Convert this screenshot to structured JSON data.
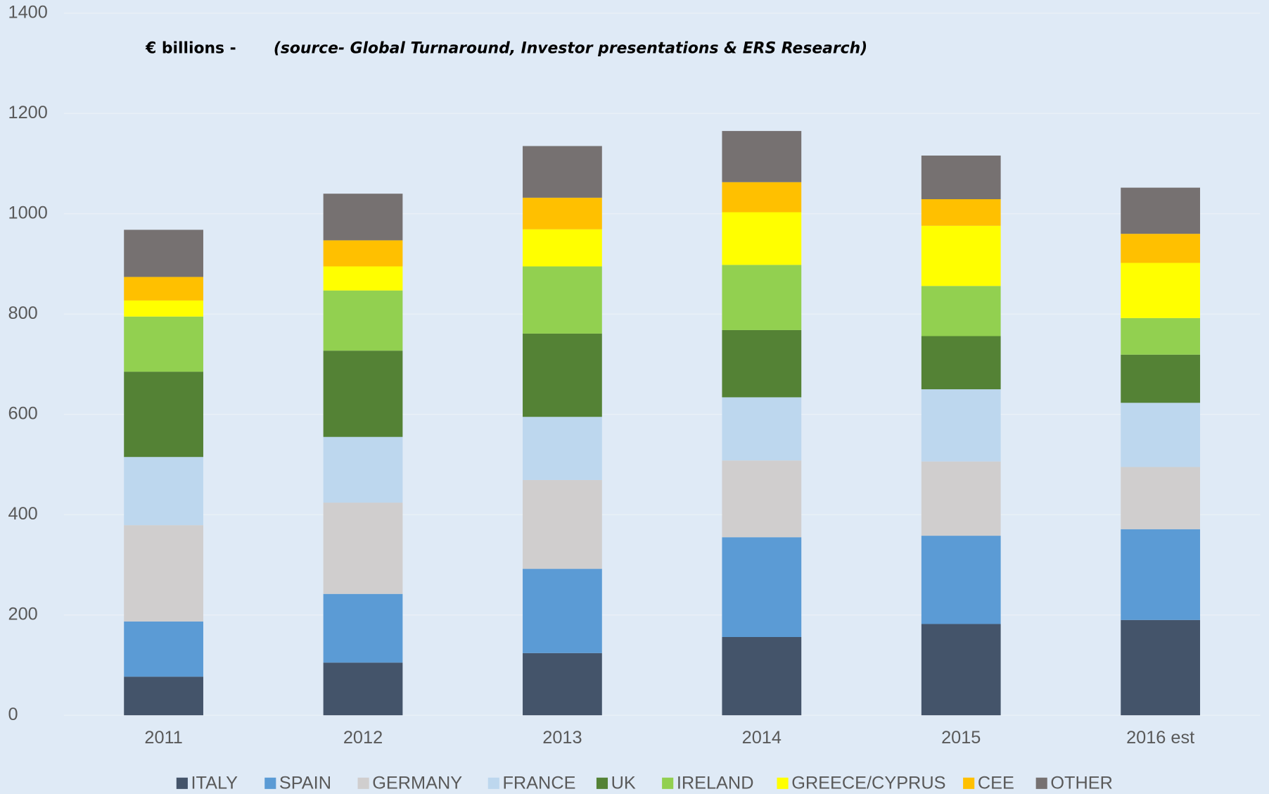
{
  "chart_data": {
    "type": "stacked_bar",
    "annotations": [
      "€ billions -",
      "(source- Global Turnaround, Investor presentations & ERS Research)"
    ],
    "categories": [
      "2011",
      "2012",
      "2013",
      "2014",
      "2015",
      "2016 est"
    ],
    "series": [
      {
        "name": "ITALY",
        "color": "#44546a",
        "values": [
          77,
          105,
          124,
          156,
          182,
          190
        ]
      },
      {
        "name": "SPAIN",
        "color": "#5b9bd5",
        "values": [
          110,
          137,
          168,
          199,
          176,
          181
        ]
      },
      {
        "name": "GERMANY",
        "color": "#d0cece",
        "values": [
          192,
          182,
          177,
          153,
          148,
          124
        ]
      },
      {
        "name": "FRANCE",
        "color": "#bdd7ee",
        "values": [
          136,
          131,
          126,
          126,
          144,
          128
        ]
      },
      {
        "name": "UK",
        "color": "#548235",
        "values": [
          170,
          172,
          166,
          134,
          106,
          96
        ]
      },
      {
        "name": "IRELAND",
        "color": "#92d050",
        "values": [
          110,
          120,
          134,
          130,
          100,
          73
        ]
      },
      {
        "name": "GREECE/CYPRUS",
        "color": "#ffff00",
        "values": [
          32,
          48,
          74,
          105,
          120,
          110
        ]
      },
      {
        "name": "CEE",
        "color": "#ffc000",
        "values": [
          47,
          52,
          63,
          60,
          53,
          58
        ]
      },
      {
        "name": "OTHER",
        "color": "#767171",
        "values": [
          94,
          93,
          103,
          102,
          87,
          92
        ]
      }
    ],
    "ylim": [
      0,
      1400
    ],
    "yticks": [
      0,
      200,
      400,
      600,
      800,
      1000,
      1200,
      1400
    ],
    "grid": true,
    "legend": "bottom"
  }
}
